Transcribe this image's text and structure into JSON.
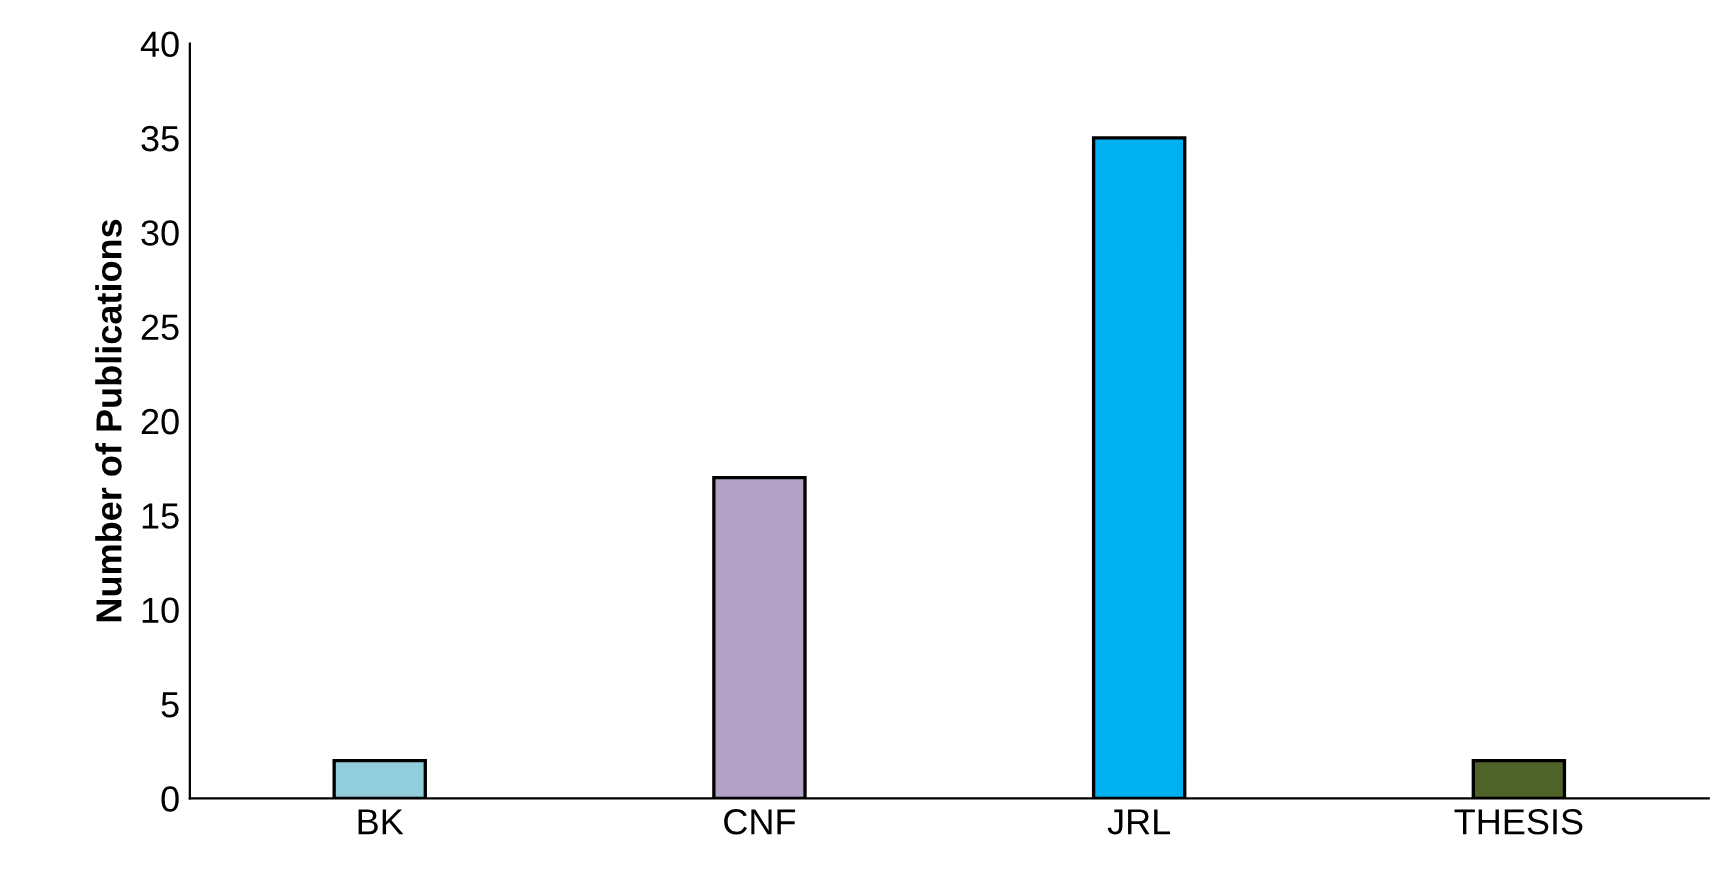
{
  "chart_data": {
    "type": "bar",
    "ylabel": "Number of Publications",
    "categories": [
      "BK",
      "CNF",
      "JRL",
      "THESIS"
    ],
    "values": [
      2,
      17,
      35,
      2
    ],
    "colors": [
      "#92cddc",
      "#b2a2c7",
      "#00b0f0",
      "#4f6228"
    ],
    "ylim": [
      0,
      40
    ],
    "yticks": [
      0,
      5,
      10,
      15,
      20,
      25,
      30,
      35,
      40
    ],
    "grid": false,
    "legend": false
  }
}
